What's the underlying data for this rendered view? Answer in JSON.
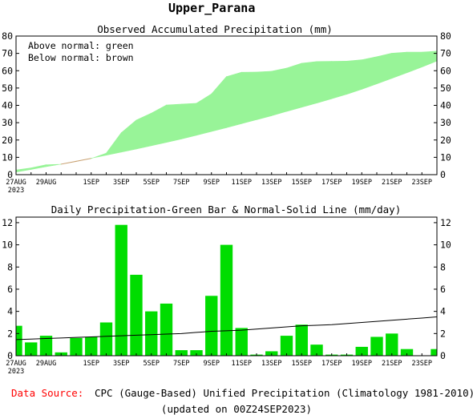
{
  "figure_title": "Upper_Parana",
  "footer": {
    "source_label": "Data Source:",
    "source_text": "CPC (Gauge-Based) Unified Precipitation (Climatology 1981-2010)",
    "updated": "(updated on 00Z24SEP2023)"
  },
  "colors": {
    "green_fill": "#98f498",
    "brown_fill": "#c8a070",
    "bar": "#00dd00",
    "line": "#000000",
    "source_label": "#ff0000"
  },
  "chart_data": [
    {
      "type": "area",
      "title": "Observed Accumulated Precipitation (mm)",
      "legend": [
        "Above normal: green",
        "Below normal: brown"
      ],
      "legend_position": "top-left",
      "x_start_date": "27AUG2023",
      "x_tick_labels": [
        "27AUG",
        "29AUG",
        "1SEP",
        "3SEP",
        "5SEP",
        "7SEP",
        "9SEP",
        "11SEP",
        "13SEP",
        "15SEP",
        "17SEP",
        "19SEP",
        "21SEP",
        "23SEP"
      ],
      "x_year_label": "2023",
      "ylim": [
        0,
        80
      ],
      "yticks": [
        0,
        10,
        20,
        30,
        40,
        50,
        60,
        70,
        80
      ],
      "grid": false,
      "series": [
        {
          "name": "Observed",
          "values": [
            2.7,
            3.9,
            5.7,
            6.0,
            7.6,
            9.3,
            12.4,
            24.2,
            31.5,
            35.5,
            40.2,
            40.7,
            41.2,
            46.6,
            56.6,
            59.1,
            59.2,
            59.7,
            61.5,
            64.3,
            65.3,
            65.4,
            65.5,
            66.3,
            68.1,
            70.1,
            70.7,
            70.7,
            71.3
          ]
        },
        {
          "name": "Normal",
          "values": [
            1.5,
            3.0,
            4.6,
            6.1,
            7.8,
            9.5,
            11.2,
            13.0,
            14.8,
            16.7,
            18.6,
            20.6,
            22.7,
            24.9,
            27.1,
            29.4,
            31.7,
            34.0,
            36.5,
            38.9,
            41.3,
            43.8,
            46.4,
            49.3,
            52.4,
            55.6,
            58.8,
            62.1,
            65.6
          ]
        }
      ]
    },
    {
      "type": "bar",
      "title": "Daily Precipitation-Green Bar & Normal-Solid Line (mm/day)",
      "x_start_date": "27AUG2023",
      "x_tick_labels": [
        "27AUG",
        "29AUG",
        "1SEP",
        "3SEP",
        "5SEP",
        "7SEP",
        "9SEP",
        "11SEP",
        "13SEP",
        "15SEP",
        "17SEP",
        "19SEP",
        "21SEP",
        "23SEP"
      ],
      "x_year_label": "2023",
      "ylim": [
        0,
        12.5
      ],
      "yticks": [
        0,
        2,
        4,
        6,
        8,
        10,
        12
      ],
      "grid": false,
      "series": [
        {
          "name": "Daily Precipitation",
          "values": [
            2.7,
            1.2,
            1.8,
            0.3,
            1.6,
            1.7,
            3.0,
            11.8,
            7.3,
            4.0,
            4.7,
            0.5,
            0.5,
            5.4,
            10.0,
            2.5,
            0.1,
            0.4,
            1.8,
            2.8,
            1.0,
            0.1,
            0.1,
            0.8,
            1.7,
            2.0,
            0.6,
            0.0,
            0.6
          ]
        },
        {
          "name": "Normal",
          "values": [
            1.45,
            1.5,
            1.55,
            1.6,
            1.65,
            1.7,
            1.75,
            1.8,
            1.85,
            1.9,
            1.95,
            2.0,
            2.1,
            2.2,
            2.25,
            2.3,
            2.4,
            2.5,
            2.6,
            2.7,
            2.75,
            2.8,
            2.9,
            3.0,
            3.1,
            3.2,
            3.3,
            3.4,
            3.5
          ]
        }
      ]
    }
  ]
}
